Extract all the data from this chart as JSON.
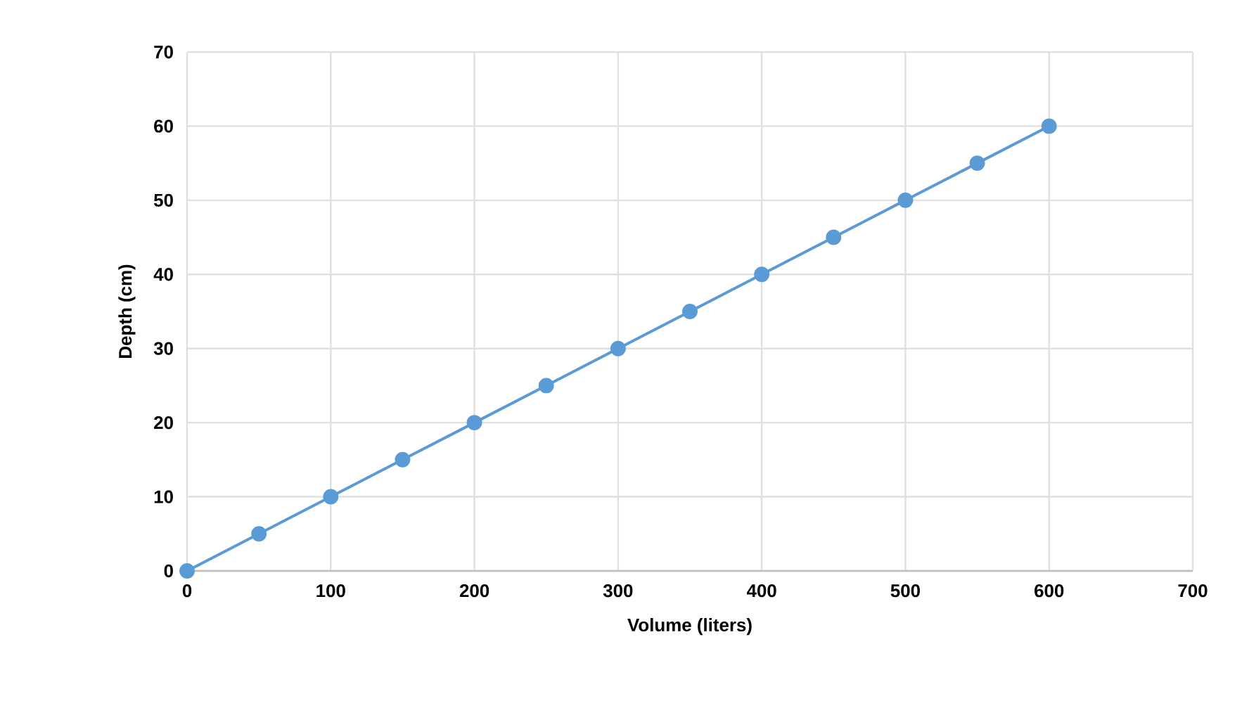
{
  "chart_data": {
    "type": "line",
    "xlabel": "Volume (liters)",
    "ylabel": "Depth (cm)",
    "x": [
      0,
      50,
      100,
      150,
      200,
      250,
      300,
      350,
      400,
      450,
      500,
      550,
      600
    ],
    "series": [
      {
        "color": "#5b9bd5",
        "values": [
          0,
          5,
          10,
          15,
          20,
          25,
          30,
          35,
          40,
          45,
          50,
          55,
          60
        ]
      }
    ],
    "xlim": [
      0,
      700
    ],
    "ylim": [
      0,
      70
    ],
    "xticks": [
      0,
      100,
      200,
      300,
      400,
      500,
      600,
      700
    ],
    "yticks": [
      0,
      10,
      20,
      30,
      40,
      50,
      60,
      70
    ],
    "grid": true,
    "marker": "circle",
    "line_style": "solid",
    "legend": false
  }
}
